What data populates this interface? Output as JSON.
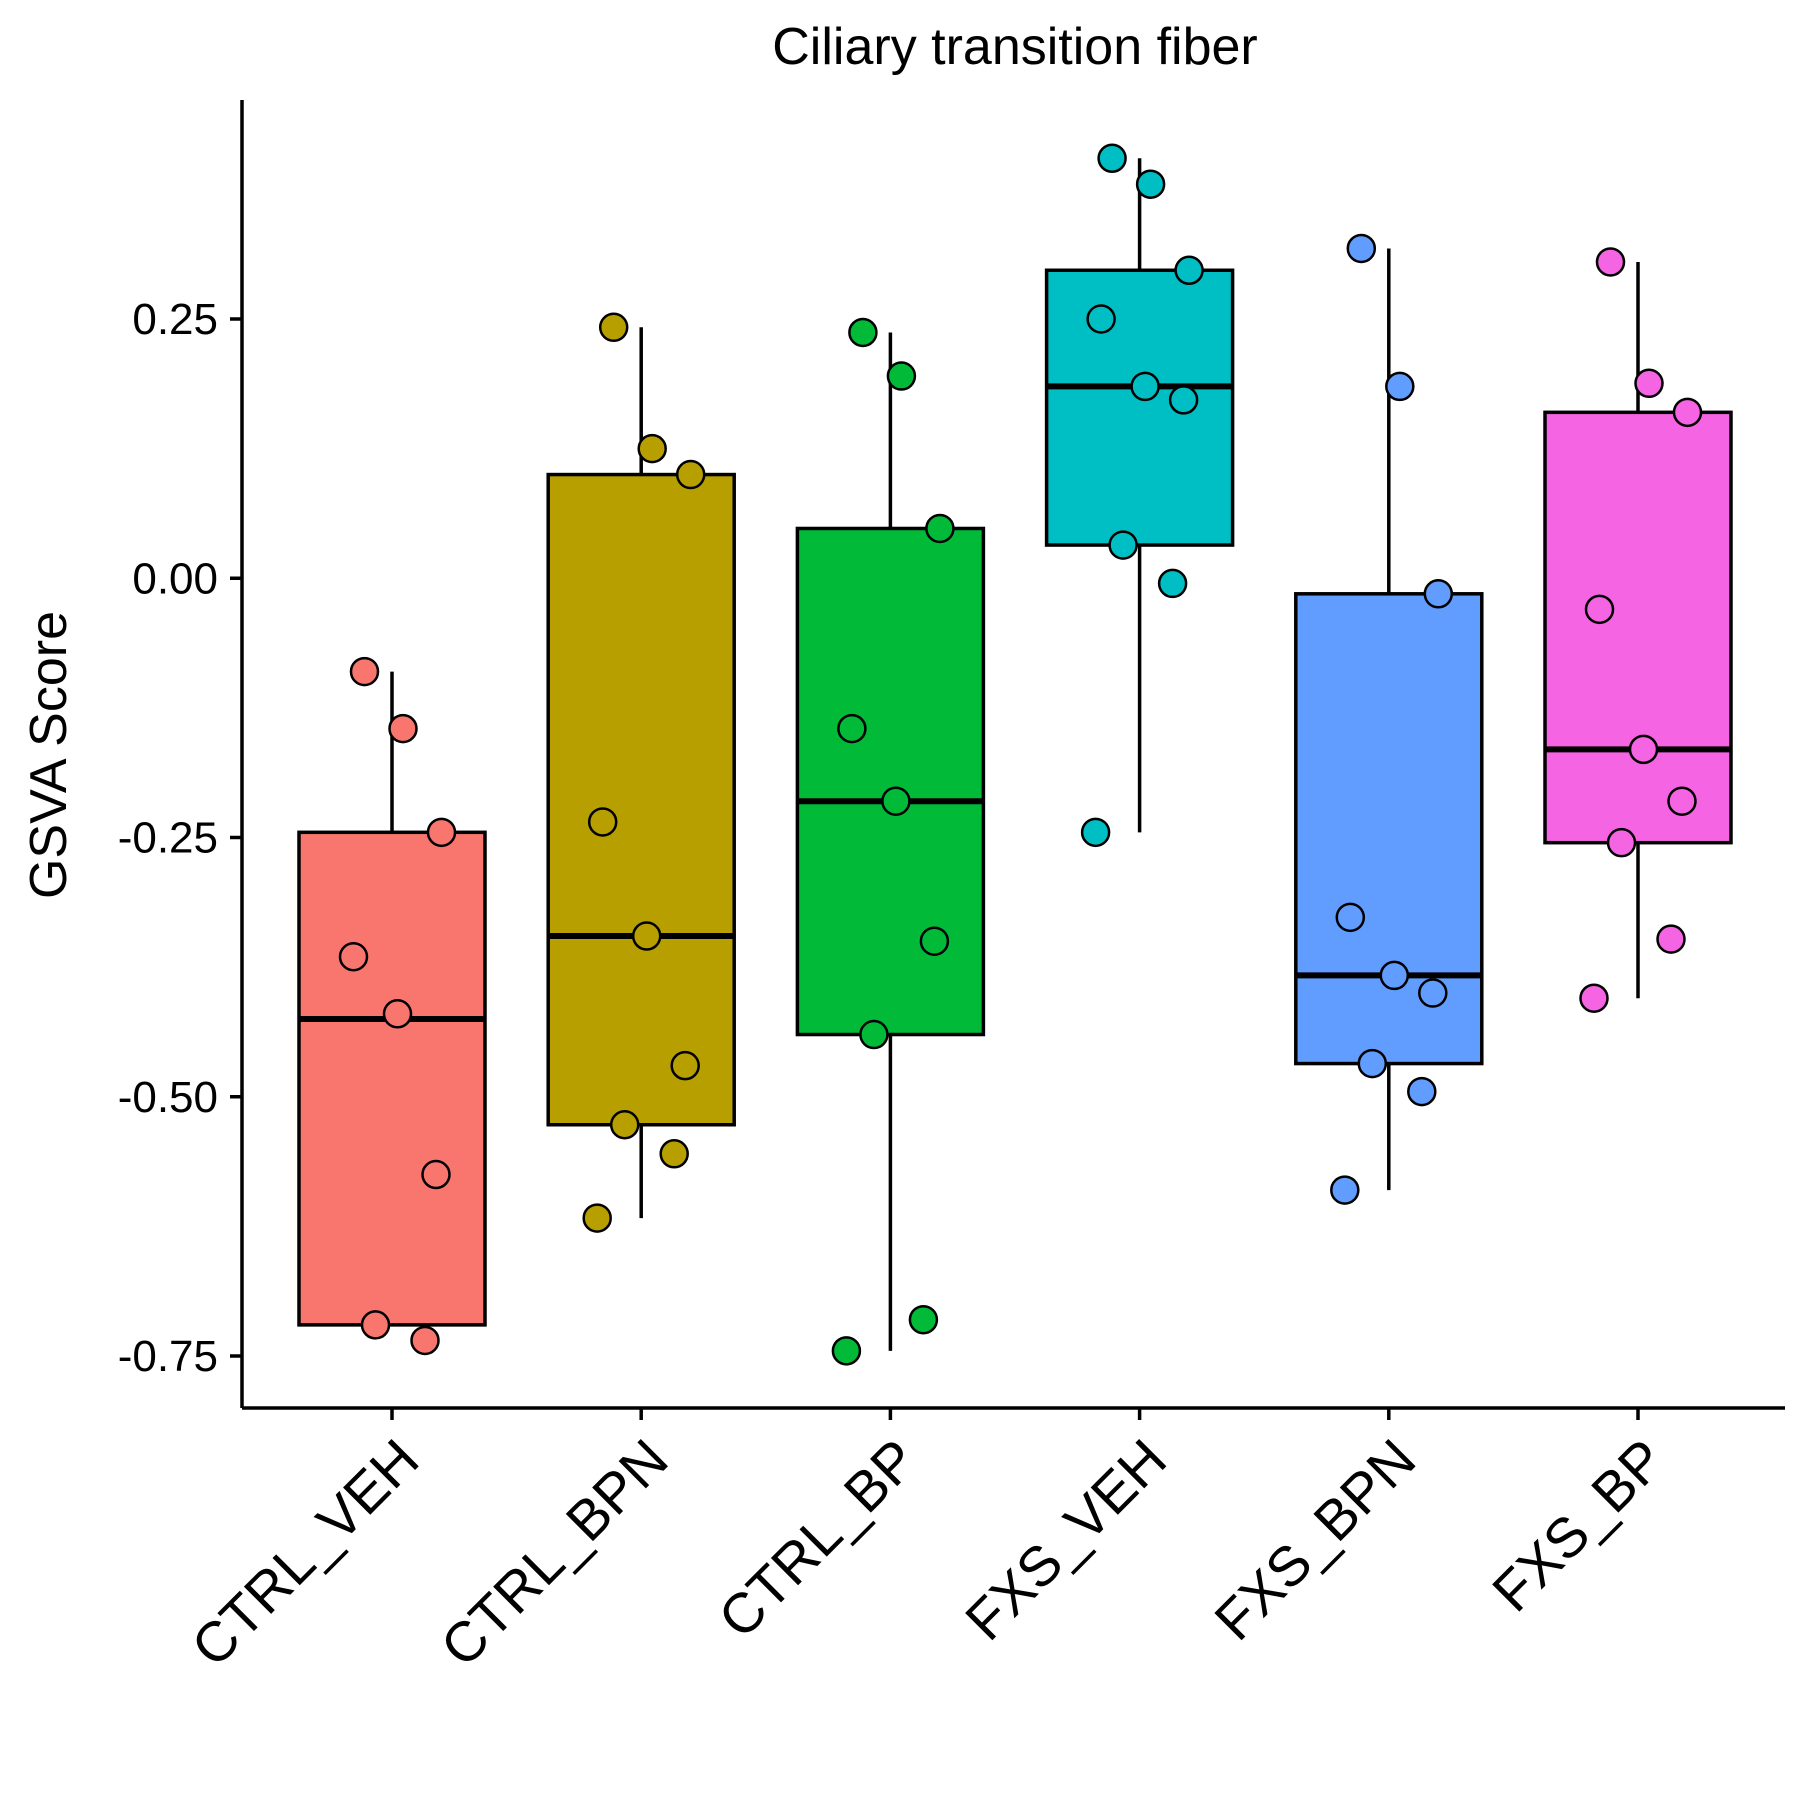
{
  "chart_data": {
    "type": "box",
    "title": "Ciliary transition fiber",
    "xlabel": "",
    "ylabel": "GSVA Score",
    "ylim": [
      -0.79,
      0.47
    ],
    "yticks": [
      0.25,
      0.0,
      -0.25,
      -0.5,
      -0.75
    ],
    "ytick_labels": [
      "0.25",
      "0.00",
      "-0.25",
      "-0.50",
      "-0.75"
    ],
    "grid": false,
    "legend": "none",
    "categories": [
      "CTRL_VEH",
      "CTRL_BPN",
      "CTRL_BP",
      "FXS_VEH",
      "FXS_BPN",
      "FXS_BP"
    ],
    "groups": [
      {
        "name": "CTRL_VEH",
        "color": "#F8766D",
        "box": {
          "q1": -0.72,
          "median": -0.425,
          "q3": -0.245,
          "whisker_low": -0.72,
          "whisker_high": -0.09
        },
        "points": [
          -0.09,
          -0.145,
          -0.245,
          -0.365,
          -0.42,
          -0.575,
          -0.72,
          -0.735
        ]
      },
      {
        "name": "CTRL_BPN",
        "color": "#B79F00",
        "box": {
          "q1": -0.527,
          "median": -0.345,
          "q3": 0.1,
          "whisker_low": -0.617,
          "whisker_high": 0.242
        },
        "points": [
          0.242,
          0.125,
          0.1,
          -0.235,
          -0.345,
          -0.47,
          -0.527,
          -0.555,
          -0.617
        ]
      },
      {
        "name": "CTRL_BP",
        "color": "#00BA38",
        "box": {
          "q1": -0.44,
          "median": -0.215,
          "q3": 0.048,
          "whisker_low": -0.745,
          "whisker_high": 0.237
        },
        "points": [
          0.237,
          0.195,
          0.048,
          -0.145,
          -0.215,
          -0.35,
          -0.44,
          -0.715,
          -0.745
        ]
      },
      {
        "name": "FXS_VEH",
        "color": "#00BFC4",
        "box": {
          "q1": 0.032,
          "median": 0.185,
          "q3": 0.297,
          "whisker_low": -0.245,
          "whisker_high": 0.405
        },
        "points": [
          0.405,
          0.38,
          0.297,
          0.25,
          0.185,
          0.172,
          0.032,
          -0.005,
          -0.245
        ]
      },
      {
        "name": "FXS_BPN",
        "color": "#619CFF",
        "box": {
          "q1": -0.468,
          "median": -0.383,
          "q3": -0.015,
          "whisker_low": -0.59,
          "whisker_high": 0.318
        },
        "points": [
          0.318,
          0.185,
          -0.015,
          -0.327,
          -0.383,
          -0.4,
          -0.468,
          -0.495,
          -0.59
        ]
      },
      {
        "name": "FXS_BP",
        "color": "#F564E3",
        "box": {
          "q1": -0.255,
          "median": -0.165,
          "q3": 0.16,
          "whisker_low": -0.405,
          "whisker_high": 0.305
        },
        "points": [
          0.305,
          0.188,
          0.16,
          -0.03,
          -0.165,
          -0.215,
          -0.255,
          -0.348,
          -0.405
        ]
      }
    ]
  }
}
